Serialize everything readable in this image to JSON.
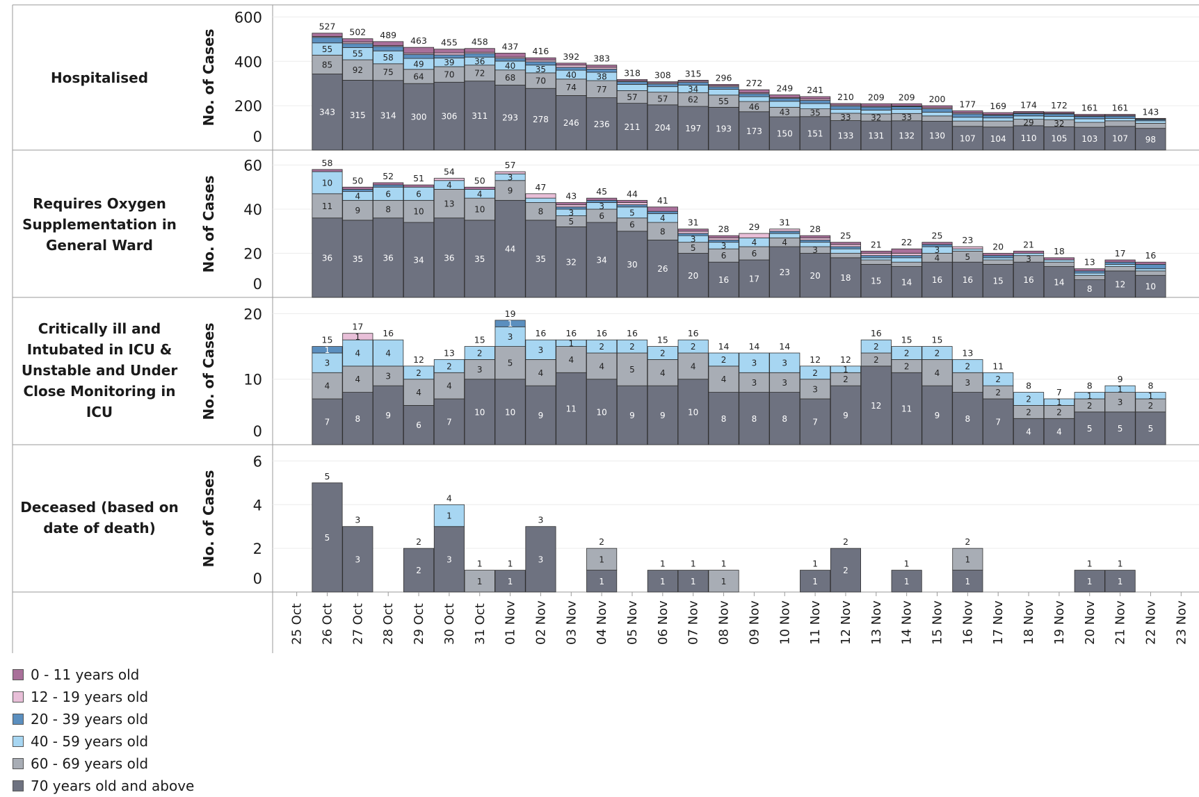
{
  "legend": {
    "items": [
      {
        "label": "0 - 11 years old",
        "color": "#a9709a"
      },
      {
        "label": "12 - 19 years old",
        "color": "#e8bfd8"
      },
      {
        "label": "20 - 39 years old",
        "color": "#5b8fbf"
      },
      {
        "label": "40 - 59 years old",
        "color": "#a7d6f2"
      },
      {
        "label": "60 - 69 years old",
        "color": "#a8adb5"
      },
      {
        "label": "70 years old and above",
        "color": "#6e7280"
      }
    ]
  },
  "chart_data": {
    "type": "bar",
    "stacked": true,
    "categories": [
      "25 Oct",
      "26 Oct",
      "27 Oct",
      "28 Oct",
      "29 Oct",
      "30 Oct",
      "31 Oct",
      "01 Nov",
      "02 Nov",
      "03 Nov",
      "04 Nov",
      "05 Nov",
      "06 Nov",
      "07 Nov",
      "08 Nov",
      "09 Nov",
      "10 Nov",
      "11 Nov",
      "12 Nov",
      "13 Nov",
      "14 Nov",
      "15 Nov",
      "16 Nov",
      "17 Nov",
      "18 Nov",
      "19 Nov",
      "20 Nov",
      "21 Nov",
      "22 Nov",
      "23 Nov"
    ],
    "series_names": [
      "70 years old and above",
      "60 - 69 years old",
      "40 - 59 years old",
      "20 - 39 years old",
      "12 - 19 years old",
      "0 - 11 years old"
    ],
    "panels": [
      {
        "title": "Hospitalised",
        "ylabel": "No. of Cases",
        "ylim": [
          0,
          620
        ],
        "yticks": [
          0,
          200,
          400,
          600
        ],
        "totals": [
          null,
          527,
          502,
          489,
          463,
          455,
          458,
          437,
          416,
          392,
          383,
          318,
          308,
          315,
          296,
          272,
          249,
          241,
          210,
          209,
          209,
          200,
          177,
          169,
          174,
          172,
          161,
          161,
          143,
          null
        ],
        "series": [
          {
            "name": "70 years old and above",
            "values": [
              null,
              343,
              315,
              314,
              300,
              306,
              311,
              293,
              278,
              246,
              236,
              211,
              204,
              197,
              193,
              173,
              150,
              151,
              133,
              131,
              132,
              130,
              107,
              104,
              110,
              105,
              103,
              107,
              98,
              null
            ]
          },
          {
            "name": "60 - 69 years old",
            "values": [
              null,
              85,
              92,
              75,
              64,
              70,
              72,
              68,
              70,
              74,
              77,
              57,
              57,
              62,
              55,
              46,
              43,
              35,
              33,
              32,
              33,
              24,
              24,
              27,
              29,
              32,
              22,
              25,
              23,
              null
            ]
          },
          {
            "name": "40 - 59 years old",
            "values": [
              null,
              55,
              55,
              58,
              49,
              39,
              36,
              40,
              35,
              40,
              38,
              28,
              25,
              34,
              26,
              22,
              27,
              24,
              18,
              17,
              19,
              17,
              17,
              14,
              15,
              15,
              16,
              11,
              11,
              null
            ]
          },
          {
            "name": "20 - 39 years old",
            "values": [
              null,
              25,
              18,
              20,
              18,
              14,
              16,
              12,
              15,
              13,
              14,
              12,
              12,
              12,
              11,
              13,
              13,
              14,
              14,
              14,
              12,
              15,
              15,
              12,
              11,
              11,
              11,
              10,
              6,
              null
            ]
          },
          {
            "name": "12 - 19 years old",
            "values": [
              null,
              4,
              7,
              4,
              6,
              9,
              6,
              6,
              8,
              10,
              8,
              4,
              5,
              5,
              5,
              4,
              4,
              6,
              5,
              4,
              3,
              5,
              5,
              3,
              3,
              3,
              3,
              3,
              2,
              null
            ]
          },
          {
            "name": "0 - 11 years old",
            "values": [
              null,
              15,
              15,
              18,
              26,
              17,
              17,
              18,
              10,
              9,
              10,
              6,
              5,
              5,
              6,
              14,
              12,
              11,
              7,
              11,
              10,
              9,
              9,
              9,
              6,
              6,
              6,
              5,
              3,
              null
            ]
          }
        ]
      },
      {
        "title": "Requires Oxygen Supplementation in General Ward",
        "ylabel": "No. of Cases",
        "ylim": [
          0,
          63
        ],
        "yticks": [
          0,
          20,
          40,
          60
        ],
        "totals": [
          null,
          58,
          50,
          52,
          51,
          54,
          50,
          57,
          47,
          43,
          45,
          44,
          41,
          31,
          28,
          29,
          31,
          28,
          25,
          21,
          22,
          25,
          23,
          20,
          21,
          18,
          13,
          17,
          16,
          null
        ],
        "series": [
          {
            "name": "70 years old and above",
            "values": [
              null,
              36,
              35,
              36,
              34,
              36,
              35,
              44,
              35,
              32,
              34,
              30,
              26,
              20,
              16,
              17,
              23,
              20,
              18,
              15,
              14,
              16,
              16,
              15,
              16,
              14,
              8,
              12,
              10,
              null
            ]
          },
          {
            "name": "60 - 69 years old",
            "values": [
              null,
              11,
              9,
              8,
              10,
              13,
              10,
              9,
              8,
              5,
              6,
              6,
              8,
              5,
              6,
              6,
              4,
              3,
              2,
              2,
              2,
              4,
              5,
              2,
              3,
              2,
              2,
              2,
              2,
              null
            ]
          },
          {
            "name": "40 - 59 years old",
            "values": [
              null,
              10,
              4,
              6,
              6,
              4,
              4,
              3,
              2,
              3,
              3,
              5,
              4,
              3,
              3,
              4,
              2,
              2,
              2,
              1,
              2,
              3,
              1,
              1,
              1,
              1,
              1,
              1,
              1,
              null
            ]
          },
          {
            "name": "20 - 39 years old",
            "values": [
              null,
              0,
              1,
              1,
              0,
              0,
              0,
              0,
              0,
              1,
              1,
              1,
              1,
              1,
              1,
              0,
              1,
              1,
              1,
              1,
              1,
              1,
              0,
              1,
              0,
              0,
              1,
              1,
              2,
              null
            ]
          },
          {
            "name": "12 - 19 years old",
            "values": [
              null,
              0,
              0,
              0,
              0,
              1,
              0,
              1,
              2,
              1,
              0,
              1,
              0,
              1,
              1,
              2,
              1,
              1,
              1,
              1,
              1,
              0,
              1,
              0,
              0,
              0,
              0,
              0,
              0,
              null
            ]
          },
          {
            "name": "0 - 11 years old",
            "values": [
              null,
              1,
              1,
              1,
              1,
              0,
              1,
              0,
              0,
              1,
              1,
              1,
              2,
              1,
              1,
              0,
              0,
              1,
              1,
              1,
              2,
              1,
              0,
              1,
              1,
              1,
              1,
              1,
              1,
              null
            ]
          }
        ]
      },
      {
        "title": "Critically ill and Intubated in ICU & Unstable and Under Close Monitoring in ICU",
        "ylabel": "No. of Cases",
        "ylim": [
          0,
          21
        ],
        "yticks": [
          0,
          10,
          20
        ],
        "totals": [
          null,
          15,
          17,
          16,
          12,
          13,
          15,
          19,
          16,
          16,
          16,
          16,
          15,
          16,
          14,
          14,
          14,
          12,
          12,
          16,
          15,
          15,
          13,
          11,
          8,
          7,
          8,
          9,
          8,
          null
        ],
        "series": [
          {
            "name": "70 years old and above",
            "values": [
              null,
              7,
              8,
              9,
              6,
              7,
              10,
              10,
              9,
              11,
              10,
              9,
              9,
              10,
              8,
              8,
              8,
              7,
              9,
              12,
              11,
              9,
              8,
              7,
              4,
              4,
              5,
              5,
              5,
              null
            ]
          },
          {
            "name": "60 - 69 years old",
            "values": [
              null,
              4,
              4,
              3,
              4,
              4,
              3,
              5,
              4,
              4,
              4,
              5,
              4,
              4,
              4,
              3,
              3,
              3,
              2,
              2,
              2,
              4,
              3,
              2,
              2,
              2,
              2,
              3,
              2,
              null
            ]
          },
          {
            "name": "40 - 59 years old",
            "values": [
              null,
              3,
              4,
              4,
              2,
              2,
              2,
              3,
              3,
              1,
              2,
              2,
              2,
              2,
              2,
              3,
              3,
              2,
              1,
              2,
              2,
              2,
              2,
              2,
              2,
              1,
              1,
              1,
              1,
              null
            ]
          },
          {
            "name": "20 - 39 years old",
            "values": [
              null,
              1,
              0,
              0,
              0,
              0,
              0,
              1,
              0,
              0,
              0,
              0,
              0,
              0,
              0,
              0,
              0,
              0,
              0,
              0,
              0,
              0,
              0,
              0,
              0,
              0,
              0,
              0,
              0,
              null
            ]
          },
          {
            "name": "12 - 19 years old",
            "values": [
              null,
              0,
              1,
              0,
              0,
              0,
              0,
              0,
              0,
              0,
              0,
              0,
              0,
              0,
              0,
              0,
              0,
              0,
              0,
              0,
              0,
              0,
              0,
              0,
              0,
              0,
              0,
              0,
              0,
              null
            ]
          },
          {
            "name": "0 - 11 years old",
            "values": [
              null,
              0,
              0,
              0,
              0,
              0,
              0,
              0,
              0,
              0,
              0,
              0,
              0,
              0,
              0,
              0,
              0,
              0,
              0,
              0,
              0,
              0,
              0,
              0,
              0,
              0,
              0,
              0,
              0,
              null
            ]
          }
        ]
      },
      {
        "title": "Deceased (based on date of death)",
        "ylabel": "No. of Cases",
        "ylim": [
          0,
          6.3
        ],
        "yticks": [
          0,
          2,
          4,
          6
        ],
        "totals": [
          null,
          5,
          3,
          null,
          2,
          4,
          1,
          1,
          3,
          null,
          2,
          null,
          1,
          1,
          1,
          null,
          null,
          1,
          2,
          null,
          1,
          null,
          2,
          null,
          null,
          null,
          1,
          1,
          null,
          null
        ],
        "series": [
          {
            "name": "70 years old and above",
            "values": [
              null,
              5,
              3,
              null,
              2,
              3,
              0,
              1,
              3,
              null,
              1,
              null,
              1,
              1,
              0,
              null,
              null,
              1,
              2,
              null,
              1,
              null,
              1,
              null,
              null,
              null,
              1,
              1,
              null,
              null
            ]
          },
          {
            "name": "60 - 69 years old",
            "values": [
              null,
              0,
              0,
              null,
              0,
              0,
              1,
              0,
              0,
              null,
              1,
              null,
              0,
              0,
              1,
              null,
              null,
              0,
              0,
              null,
              0,
              null,
              1,
              null,
              null,
              null,
              0,
              0,
              null,
              null
            ]
          },
          {
            "name": "40 - 59 years old",
            "values": [
              null,
              0,
              0,
              null,
              0,
              1,
              0,
              0,
              0,
              null,
              0,
              null,
              0,
              0,
              0,
              null,
              null,
              0,
              0,
              null,
              0,
              null,
              0,
              null,
              null,
              null,
              0,
              0,
              null,
              null
            ]
          }
        ]
      }
    ]
  }
}
